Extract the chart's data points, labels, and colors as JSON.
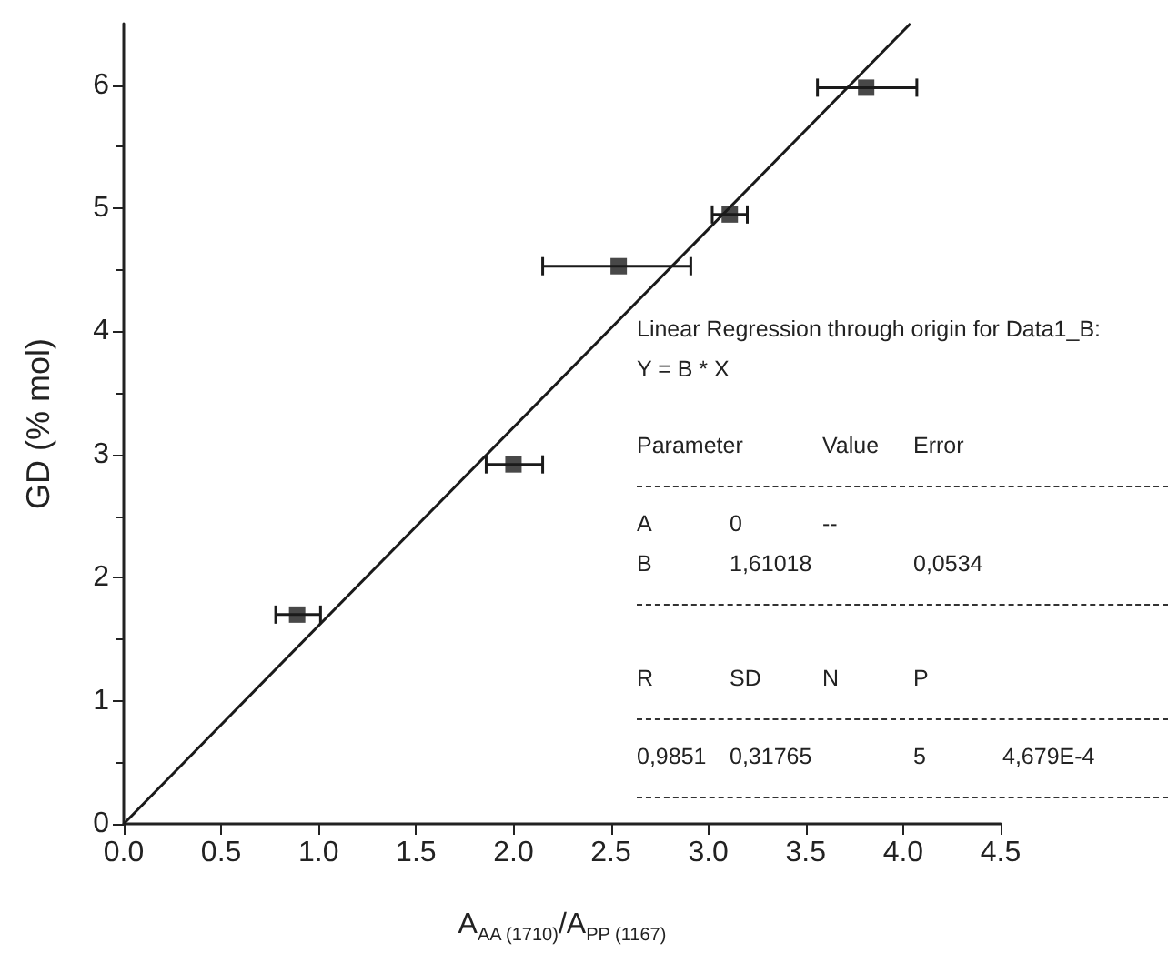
{
  "chart_data": {
    "type": "scatter",
    "xlabel": "A$_{AA (1710)}$/A$_{PP (1167)}$",
    "ylabel": "GD (% mol)",
    "xlim": [
      0,
      4.5
    ],
    "xticks": [
      {
        "value": 0,
        "label": "0.0"
      },
      0.5,
      {
        "value": 1,
        "label": "1.0"
      },
      1.5,
      {
        "value": 2,
        "label": "2.0"
      },
      2.5,
      {
        "value": 3,
        "label": "3.0"
      },
      3.5,
      {
        "value": 4,
        "label": "4.0"
      },
      4.5
    ],
    "ylim": [
      0,
      6.5
    ],
    "yticks": [
      0,
      1,
      2,
      3,
      4,
      5,
      6
    ],
    "grid": false,
    "series": [
      {
        "marker": "square",
        "color": "#1a1a1a",
        "x": [
          0.89,
          2.0,
          2.54,
          3.11,
          3.81
        ],
        "values": [
          1.7,
          2.92,
          4.53,
          4.95,
          5.98
        ],
        "xerrors": [
          [
            0.78,
            1.01
          ],
          [
            1.86,
            2.15
          ],
          [
            2.15,
            2.91
          ],
          [
            3.02,
            3.2
          ],
          [
            3.56,
            4.07
          ]
        ]
      },
      {
        "type": "line",
        "marker": "none",
        "color": "#1a1a1a",
        "x": [
          0,
          4.037
        ],
        "values": [
          0,
          6.5
        ]
      }
    ],
    "annotations": [
      "Linear Regression through origin for Data1_B:",
      "Y = B * X",
      "Parameter\t\tValue\tError",
      "A\t0\t--",
      "B\t1,61018\t\t0,0534",
      "R\tSD\tN\tP",
      "0,9851\t0,31765\t\t5\t4,679E-4"
    ]
  }
}
